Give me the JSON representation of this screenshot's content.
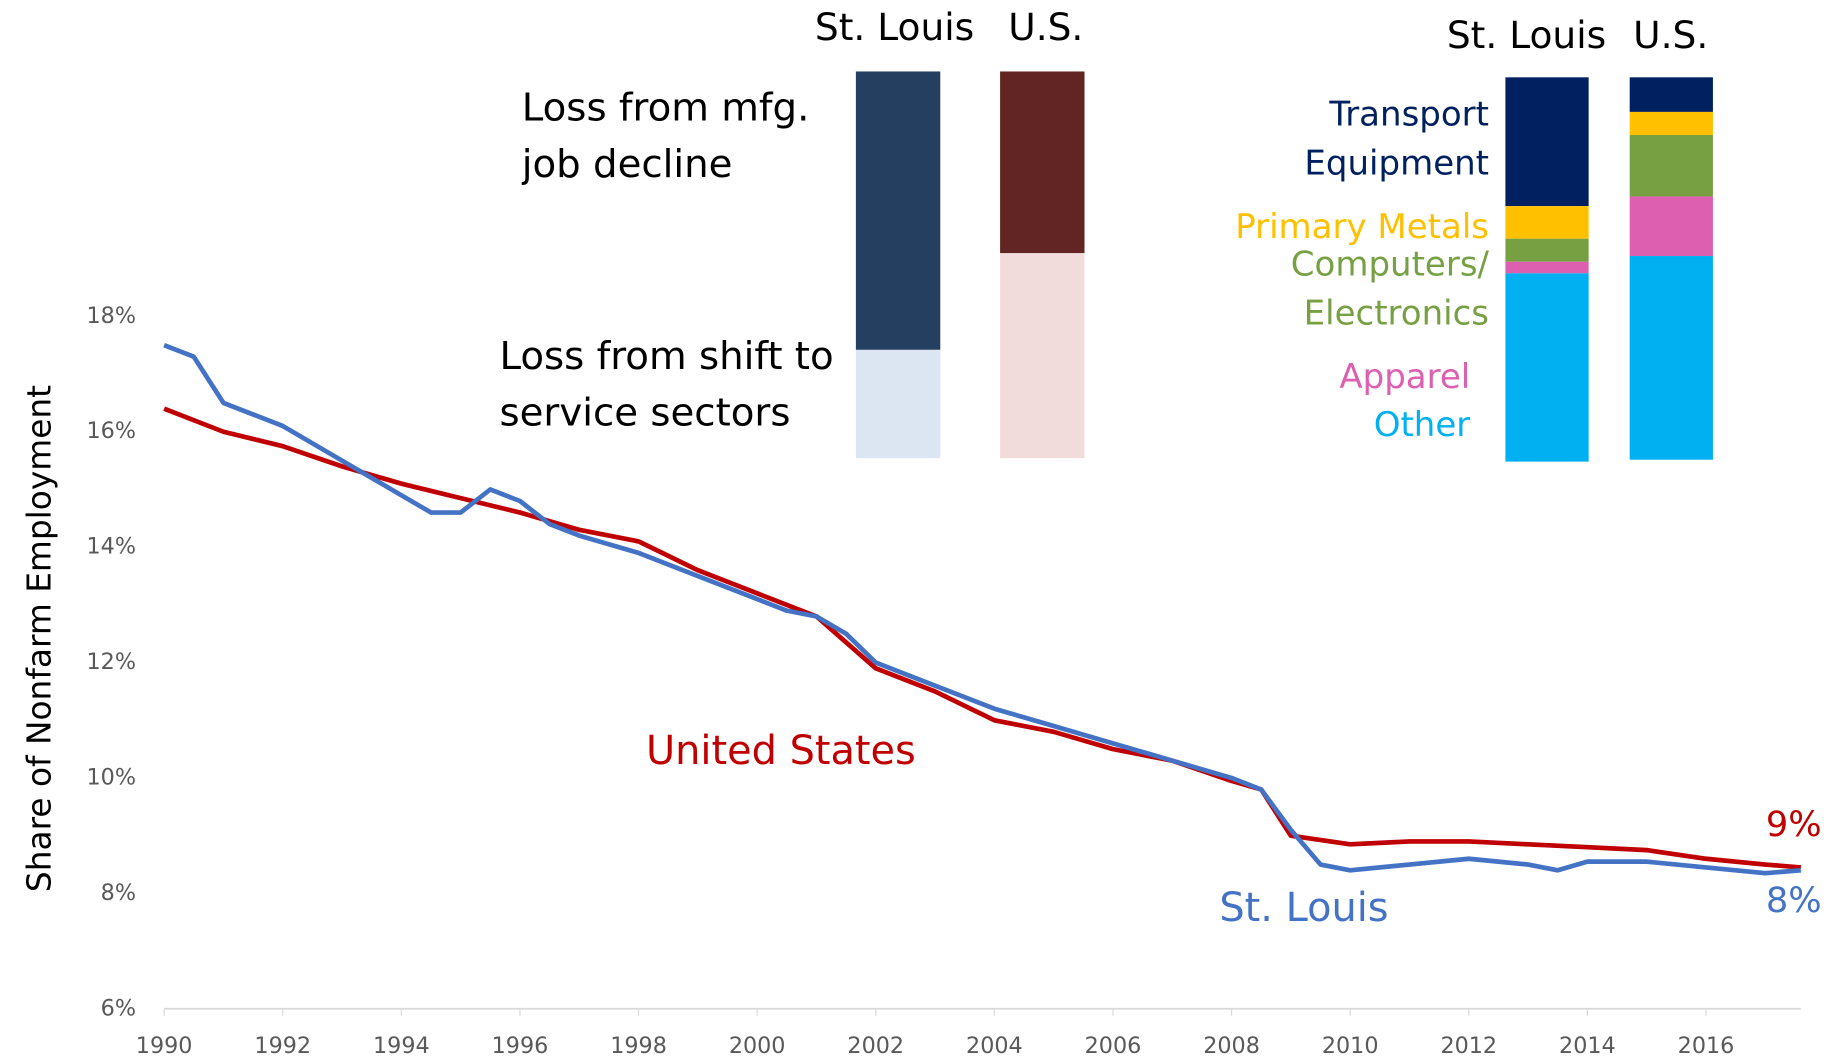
{
  "chart_data": [
    {
      "type": "line",
      "ylabel": "Share of Nonfarm Employment",
      "xlim": [
        1990,
        2017.6
      ],
      "xticks": [
        1990,
        1992,
        1994,
        1996,
        1998,
        2000,
        2002,
        2004,
        2006,
        2008,
        2010,
        2012,
        2014,
        2016
      ],
      "ylim": [
        6,
        18
      ],
      "yticks": [
        {
          "value": 6,
          "label": "6%"
        },
        {
          "value": 8,
          "label": "8%"
        },
        {
          "value": 10,
          "label": "10%"
        },
        {
          "value": 12,
          "label": "12%"
        },
        {
          "value": 14,
          "label": "14%"
        },
        {
          "value": 16,
          "label": "16%"
        },
        {
          "value": 18,
          "label": "18%"
        }
      ],
      "series": [
        {
          "name": "United States",
          "color": "#c00000",
          "x": [
            1990,
            1991,
            1992,
            1993,
            1994,
            1995,
            1996,
            1997,
            1998,
            1999,
            2000,
            2001,
            2002,
            2003,
            2004,
            2005,
            2006,
            2007,
            2008,
            2008.5,
            2009,
            2010,
            2011,
            2012,
            2013,
            2014,
            2015,
            2016,
            2017,
            2017.6
          ],
          "values": [
            16.4,
            16.0,
            15.75,
            15.4,
            15.1,
            14.85,
            14.6,
            14.3,
            14.1,
            13.6,
            13.2,
            12.8,
            11.9,
            11.5,
            11.0,
            10.8,
            10.5,
            10.3,
            9.95,
            9.8,
            9.0,
            8.85,
            8.9,
            8.9,
            8.85,
            8.8,
            8.75,
            8.6,
            8.5,
            8.45
          ]
        },
        {
          "name": "St. Louis",
          "color": "#4472c4",
          "x": [
            1990,
            1990.5,
            1991,
            1992,
            1993,
            1993.5,
            1994,
            1994.5,
            1995,
            1995.5,
            1996,
            1996.5,
            1997,
            1998,
            1999,
            2000,
            2000.5,
            2001,
            2001.5,
            2002,
            2003,
            2004,
            2005,
            2006,
            2007,
            2008,
            2008.5,
            2009,
            2009.5,
            2010,
            2011,
            2012,
            2013,
            2013.5,
            2014,
            2015,
            2016,
            2017,
            2017.6
          ],
          "values": [
            17.5,
            17.3,
            16.5,
            16.1,
            15.5,
            15.2,
            14.9,
            14.6,
            14.6,
            15.0,
            14.8,
            14.4,
            14.2,
            13.9,
            13.5,
            13.1,
            12.9,
            12.8,
            12.5,
            12.0,
            11.6,
            11.2,
            10.9,
            10.6,
            10.3,
            10.0,
            9.8,
            9.1,
            8.5,
            8.4,
            8.5,
            8.6,
            8.5,
            8.4,
            8.55,
            8.55,
            8.45,
            8.35,
            8.4
          ]
        }
      ],
      "annotations": [
        {
          "text": "9%",
          "color": "#c00000"
        },
        {
          "text": "8%",
          "color": "#4472c4"
        }
      ]
    },
    {
      "type": "stacked_bar",
      "categories": [
        "St. Louis",
        "U.S."
      ],
      "series": [
        {
          "name": "Loss from mfg. job decline",
          "colors": [
            "#243f60",
            "#632523"
          ],
          "values": [
            72,
            47
          ]
        },
        {
          "name": "Loss from shift to service sectors",
          "colors": [
            "#dce6f2",
            "#f2dcdb"
          ],
          "values": [
            28,
            53
          ]
        }
      ]
    },
    {
      "type": "stacked_bar",
      "categories": [
        "St. Louis",
        "U.S."
      ],
      "series": [
        {
          "name": "Transport Equipment",
          "color": "#002060",
          "values": [
            33.5,
            9
          ]
        },
        {
          "name": "Primary Metals",
          "color": "#ffc000",
          "values": [
            8.5,
            6
          ]
        },
        {
          "name": "Computers/ Electronics",
          "color": "#77a043",
          "values": [
            6,
            16
          ]
        },
        {
          "name": "Apparel",
          "color": "#dc5fb0",
          "values": [
            3,
            15.5
          ]
        },
        {
          "name": "Other",
          "color": "#00b0f0",
          "values": [
            49,
            53
          ]
        }
      ]
    }
  ]
}
